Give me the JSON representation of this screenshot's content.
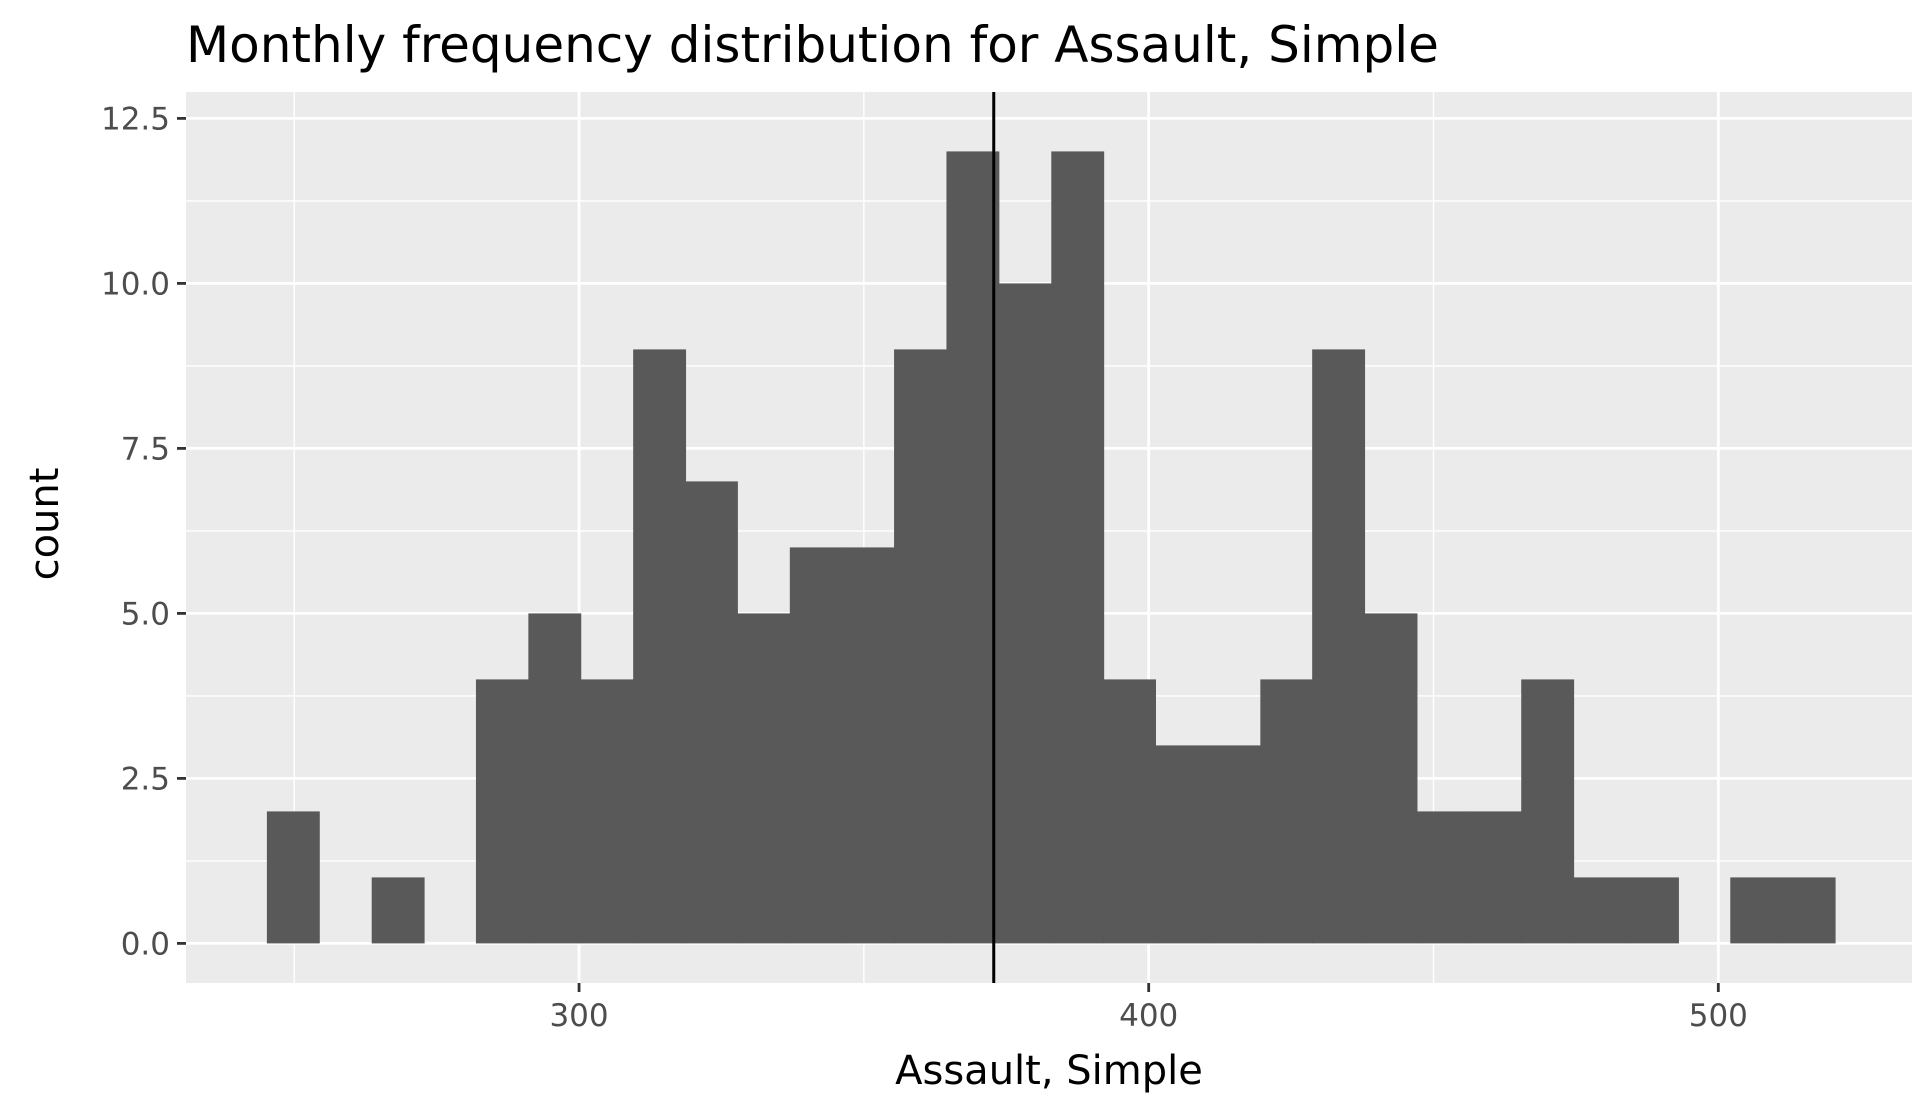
{
  "chart_data": {
    "type": "bar",
    "title": "Monthly frequency distribution for Assault, Simple",
    "xlabel": "Assault, Simple",
    "ylabel": "count",
    "xlim": [
      231,
      534
    ],
    "ylim": [
      -0.6,
      12.9
    ],
    "x_ticks": [
      {
        "value": 300,
        "label": "300"
      },
      {
        "value": 400,
        "label": "400"
      },
      {
        "value": 500,
        "label": "500"
      }
    ],
    "y_ticks": [
      {
        "value": 0,
        "label": "0.0"
      },
      {
        "value": 2.5,
        "label": "2.5"
      },
      {
        "value": 5,
        "label": "5.0"
      },
      {
        "value": 7.5,
        "label": "7.5"
      },
      {
        "value": 10,
        "label": "10.0"
      },
      {
        "value": 12.5,
        "label": "12.5"
      }
    ],
    "bin_width": 9.18,
    "bins": [
      {
        "start": 245.2,
        "count": 2
      },
      {
        "start": 254.4,
        "count": 0
      },
      {
        "start": 263.6,
        "count": 1
      },
      {
        "start": 272.8,
        "count": 0
      },
      {
        "start": 281.9,
        "count": 4
      },
      {
        "start": 291.1,
        "count": 5
      },
      {
        "start": 300.3,
        "count": 4
      },
      {
        "start": 309.5,
        "count": 9
      },
      {
        "start": 318.6,
        "count": 7
      },
      {
        "start": 327.8,
        "count": 5
      },
      {
        "start": 337.0,
        "count": 6
      },
      {
        "start": 346.2,
        "count": 6
      },
      {
        "start": 355.3,
        "count": 9
      },
      {
        "start": 364.5,
        "count": 12
      },
      {
        "start": 373.7,
        "count": 10
      },
      {
        "start": 382.9,
        "count": 12
      },
      {
        "start": 392.0,
        "count": 4
      },
      {
        "start": 401.2,
        "count": 3
      },
      {
        "start": 410.4,
        "count": 3
      },
      {
        "start": 419.6,
        "count": 4
      },
      {
        "start": 428.7,
        "count": 9
      },
      {
        "start": 437.9,
        "count": 5
      },
      {
        "start": 447.1,
        "count": 2
      },
      {
        "start": 456.3,
        "count": 2
      },
      {
        "start": 465.4,
        "count": 4
      },
      {
        "start": 474.6,
        "count": 1
      },
      {
        "start": 483.8,
        "count": 1
      },
      {
        "start": 493.0,
        "count": 0
      },
      {
        "start": 502.1,
        "count": 1
      },
      {
        "start": 511.3,
        "count": 1
      }
    ],
    "vline_x": 372.8,
    "grid": true,
    "legend": "none",
    "colors": {
      "panel": "#ebebeb",
      "grid": "#ffffff",
      "bar": "#595959",
      "vline": "#000000",
      "tick": "#333333"
    }
  }
}
